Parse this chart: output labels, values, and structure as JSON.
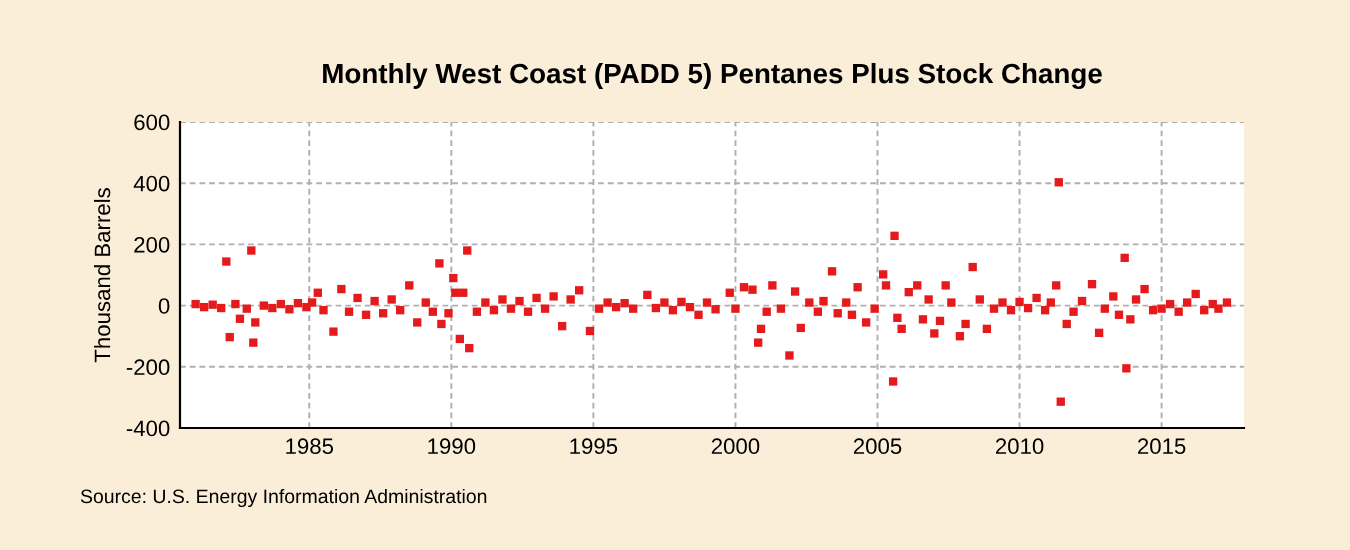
{
  "chart_data": {
    "type": "scatter",
    "title": "Monthly West Coast (PADD 5) Pentanes Plus Stock Change",
    "ylabel": "Thousand Barrels",
    "annotations": [
      "Source: U.S. Energy Information Administration"
    ],
    "x": [
      1981.0,
      1981.3,
      1981.6,
      1981.9,
      1982.08,
      1982.2,
      1982.4,
      1982.56,
      1982.8,
      1982.96,
      1983.03,
      1983.1,
      1983.4,
      1983.7,
      1984.0,
      1984.3,
      1984.6,
      1984.9,
      1985.1,
      1985.3,
      1985.5,
      1985.85,
      1986.13,
      1986.4,
      1986.7,
      1987.0,
      1987.3,
      1987.6,
      1987.9,
      1988.2,
      1988.52,
      1988.8,
      1989.1,
      1989.35,
      1989.58,
      1989.65,
      1989.9,
      1990.07,
      1990.14,
      1990.3,
      1990.42,
      1990.56,
      1990.63,
      1990.9,
      1991.2,
      1991.5,
      1991.8,
      1992.1,
      1992.4,
      1992.7,
      1993.0,
      1993.3,
      1993.6,
      1993.9,
      1994.2,
      1994.5,
      1994.88,
      1995.2,
      1995.5,
      1995.8,
      1996.1,
      1996.4,
      1996.9,
      1997.2,
      1997.5,
      1997.8,
      1998.1,
      1998.4,
      1998.7,
      1999.0,
      1999.3,
      1999.8,
      2000.0,
      2000.3,
      2000.6,
      2000.8,
      2000.9,
      2001.1,
      2001.3,
      2001.6,
      2001.9,
      2002.1,
      2002.3,
      2002.6,
      2002.9,
      2003.1,
      2003.4,
      2003.6,
      2003.9,
      2004.1,
      2004.3,
      2004.6,
      2004.9,
      2005.2,
      2005.3,
      2005.55,
      2005.6,
      2005.7,
      2005.85,
      2006.1,
      2006.4,
      2006.6,
      2006.8,
      2007.0,
      2007.2,
      2007.4,
      2007.6,
      2007.9,
      2008.1,
      2008.35,
      2008.6,
      2008.85,
      2009.1,
      2009.4,
      2009.7,
      2010.0,
      2010.3,
      2010.6,
      2010.9,
      2011.1,
      2011.29,
      2011.38,
      2011.45,
      2011.66,
      2011.9,
      2012.2,
      2012.55,
      2012.8,
      2013.0,
      2013.3,
      2013.5,
      2013.7,
      2013.76,
      2013.9,
      2014.1,
      2014.4,
      2014.7,
      2015.0,
      2015.3,
      2015.6,
      2015.9,
      2016.2,
      2016.5,
      2016.8,
      2017.0,
      2017.3
    ],
    "series": [
      {
        "color": "#e41a1c",
        "values": [
          5,
          -5,
          3,
          -8,
          144,
          -103,
          5,
          -43,
          -10,
          180,
          -121,
          -55,
          0,
          -8,
          5,
          -12,
          8,
          -5,
          10,
          42,
          -15,
          -85,
          54,
          -20,
          25,
          -30,
          15,
          -25,
          20,
          -15,
          66,
          -55,
          10,
          -20,
          138,
          -60,
          -25,
          90,
          42,
          -109,
          42,
          180,
          -139,
          -20,
          10,
          -15,
          20,
          -10,
          15,
          -20,
          25,
          -10,
          30,
          -67,
          20,
          50,
          -83,
          -10,
          10,
          -5,
          8,
          -10,
          35,
          -8,
          10,
          -15,
          12,
          -5,
          -30,
          10,
          -12,
          42,
          -10,
          60,
          52,
          -121,
          -76,
          -20,
          66,
          -10,
          -163,
          46,
          -73,
          10,
          -20,
          15,
          112,
          -25,
          10,
          -30,
          60,
          -55,
          -10,
          102,
          66,
          -248,
          228,
          -40,
          -76,
          44,
          66,
          -45,
          20,
          -91,
          -50,
          66,
          10,
          -100,
          -60,
          126,
          20,
          -76,
          -10,
          10,
          -15,
          12,
          -8,
          25,
          -15,
          10,
          66,
          403,
          -314,
          -60,
          -20,
          15,
          70,
          -89,
          -10,
          30,
          -30,
          156,
          -205,
          -45,
          20,
          54,
          -15,
          -10,
          5,
          -20,
          10,
          38,
          -15,
          5,
          -10,
          10
        ]
      }
    ],
    "xlim": [
      1980.45,
      2017.9
    ],
    "ylim": [
      -400,
      600
    ],
    "xticks": [
      1985,
      1990,
      1995,
      2000,
      2005,
      2010,
      2015
    ],
    "yticks": [
      -400,
      -200,
      0,
      200,
      400,
      600
    ],
    "grid": true,
    "marker": "square"
  }
}
